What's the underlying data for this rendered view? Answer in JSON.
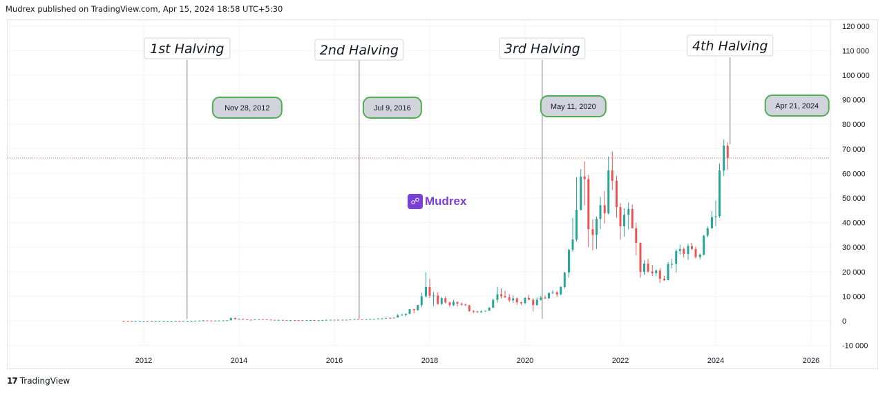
{
  "header": {
    "publisher_text": "Mudrex published on TradingView.com, Apr 15, 2024 18:58 UTC+5:30"
  },
  "watermark": {
    "text": "Mudrex",
    "icon": "mudrex-logo-icon",
    "color": "#7b3fd6"
  },
  "footer": {
    "brand": "TradingView",
    "logo_text": "17"
  },
  "colors": {
    "up": "#26a69a",
    "down": "#ef5350",
    "grid": "#f0f3fa",
    "price_line": "#ef5350",
    "halving_line": "#787b86",
    "date_label_bg": "#d1d4dc",
    "date_label_border": "#4caf50"
  },
  "chart_data": {
    "type": "candlestick",
    "interval": "monthly",
    "title": "",
    "xlabel": "",
    "ylabel": "",
    "x_ticks": [
      "2012",
      "2014",
      "2016",
      "2018",
      "2020",
      "2022",
      "2024",
      "2026"
    ],
    "y_ticks": [
      "120 000",
      "110 000",
      "100 000",
      "90 000",
      "80 000",
      "70 000",
      "60 000",
      "50 000",
      "40 000",
      "30 000",
      "20 000",
      "10 000",
      "0",
      "-10 000"
    ],
    "ylim": [
      -10000,
      120000
    ],
    "xlim": [
      2011.0,
      2027.0
    ],
    "grid": true,
    "current_price": 66300,
    "halvings": [
      {
        "label": "1st Halving",
        "date_label": "Nov 28, 2012",
        "x": 2012.91
      },
      {
        "label": "2nd Halving",
        "date_label": "Jul 9, 2016",
        "x": 2016.52
      },
      {
        "label": "3rd Halving",
        "date_label": "May 11, 2020",
        "x": 2020.36
      },
      {
        "label": "4th Halving",
        "date_label": "Apr 21, 2024",
        "x": 2024.3
      }
    ],
    "candles": [
      {
        "t": 2011.58,
        "o": 10,
        "h": 15,
        "l": 5,
        "c": 8
      },
      {
        "t": 2011.67,
        "o": 8,
        "h": 9,
        "l": 4,
        "c": 5
      },
      {
        "t": 2011.75,
        "o": 5,
        "h": 6,
        "l": 2,
        "c": 3
      },
      {
        "t": 2011.83,
        "o": 3,
        "h": 4,
        "l": 2,
        "c": 3
      },
      {
        "t": 2011.92,
        "o": 3,
        "h": 5,
        "l": 3,
        "c": 5
      },
      {
        "t": 2012.0,
        "o": 5,
        "h": 7,
        "l": 5,
        "c": 6
      },
      {
        "t": 2012.08,
        "o": 6,
        "h": 6,
        "l": 4,
        "c": 5
      },
      {
        "t": 2012.17,
        "o": 5,
        "h": 5,
        "l": 4,
        "c": 5
      },
      {
        "t": 2012.25,
        "o": 5,
        "h": 5,
        "l": 4,
        "c": 5
      },
      {
        "t": 2012.33,
        "o": 5,
        "h": 5,
        "l": 5,
        "c": 5
      },
      {
        "t": 2012.42,
        "o": 5,
        "h": 7,
        "l": 5,
        "c": 7
      },
      {
        "t": 2012.5,
        "o": 7,
        "h": 9,
        "l": 7,
        "c": 9
      },
      {
        "t": 2012.58,
        "o": 9,
        "h": 16,
        "l": 8,
        "c": 10
      },
      {
        "t": 2012.67,
        "o": 10,
        "h": 12,
        "l": 10,
        "c": 12
      },
      {
        "t": 2012.75,
        "o": 12,
        "h": 12,
        "l": 10,
        "c": 11
      },
      {
        "t": 2012.83,
        "o": 11,
        "h": 13,
        "l": 10,
        "c": 12
      },
      {
        "t": 2012.92,
        "o": 12,
        "h": 14,
        "l": 12,
        "c": 13
      },
      {
        "t": 2013.0,
        "o": 13,
        "h": 20,
        "l": 13,
        "c": 20
      },
      {
        "t": 2013.08,
        "o": 20,
        "h": 34,
        "l": 20,
        "c": 33
      },
      {
        "t": 2013.17,
        "o": 33,
        "h": 95,
        "l": 33,
        "c": 93
      },
      {
        "t": 2013.25,
        "o": 93,
        "h": 260,
        "l": 60,
        "c": 140
      },
      {
        "t": 2013.33,
        "o": 140,
        "h": 140,
        "l": 100,
        "c": 128
      },
      {
        "t": 2013.42,
        "o": 128,
        "h": 130,
        "l": 90,
        "c": 97
      },
      {
        "t": 2013.5,
        "o": 97,
        "h": 112,
        "l": 65,
        "c": 106
      },
      {
        "t": 2013.58,
        "o": 106,
        "h": 135,
        "l": 104,
        "c": 135
      },
      {
        "t": 2013.67,
        "o": 135,
        "h": 140,
        "l": 120,
        "c": 139
      },
      {
        "t": 2013.75,
        "o": 139,
        "h": 215,
        "l": 103,
        "c": 210
      },
      {
        "t": 2013.83,
        "o": 210,
        "h": 1240,
        "l": 200,
        "c": 1200
      },
      {
        "t": 2013.92,
        "o": 1200,
        "h": 1150,
        "l": 500,
        "c": 750
      },
      {
        "t": 2014.0,
        "o": 750,
        "h": 1000,
        "l": 750,
        "c": 800
      },
      {
        "t": 2014.08,
        "o": 800,
        "h": 860,
        "l": 420,
        "c": 560
      },
      {
        "t": 2014.17,
        "o": 560,
        "h": 700,
        "l": 440,
        "c": 450
      },
      {
        "t": 2014.25,
        "o": 450,
        "h": 520,
        "l": 340,
        "c": 445
      },
      {
        "t": 2014.33,
        "o": 445,
        "h": 630,
        "l": 430,
        "c": 630
      },
      {
        "t": 2014.42,
        "o": 630,
        "h": 680,
        "l": 560,
        "c": 640
      },
      {
        "t": 2014.5,
        "o": 640,
        "h": 630,
        "l": 570,
        "c": 590
      },
      {
        "t": 2014.58,
        "o": 590,
        "h": 600,
        "l": 450,
        "c": 480
      },
      {
        "t": 2014.67,
        "o": 480,
        "h": 490,
        "l": 370,
        "c": 390
      },
      {
        "t": 2014.75,
        "o": 390,
        "h": 420,
        "l": 280,
        "c": 340
      },
      {
        "t": 2014.83,
        "o": 340,
        "h": 460,
        "l": 330,
        "c": 370
      },
      {
        "t": 2014.92,
        "o": 370,
        "h": 380,
        "l": 300,
        "c": 320
      },
      {
        "t": 2015.0,
        "o": 320,
        "h": 320,
        "l": 170,
        "c": 220
      },
      {
        "t": 2015.08,
        "o": 220,
        "h": 260,
        "l": 220,
        "c": 255
      },
      {
        "t": 2015.17,
        "o": 255,
        "h": 300,
        "l": 240,
        "c": 245
      },
      {
        "t": 2015.25,
        "o": 245,
        "h": 250,
        "l": 215,
        "c": 235
      },
      {
        "t": 2015.33,
        "o": 235,
        "h": 245,
        "l": 225,
        "c": 230
      },
      {
        "t": 2015.42,
        "o": 230,
        "h": 265,
        "l": 220,
        "c": 263
      },
      {
        "t": 2015.5,
        "o": 263,
        "h": 300,
        "l": 255,
        "c": 285
      },
      {
        "t": 2015.58,
        "o": 285,
        "h": 285,
        "l": 200,
        "c": 230
      },
      {
        "t": 2015.67,
        "o": 230,
        "h": 245,
        "l": 225,
        "c": 237
      },
      {
        "t": 2015.75,
        "o": 237,
        "h": 330,
        "l": 235,
        "c": 315
      },
      {
        "t": 2015.83,
        "o": 315,
        "h": 500,
        "l": 310,
        "c": 378
      },
      {
        "t": 2015.92,
        "o": 378,
        "h": 470,
        "l": 350,
        "c": 430
      },
      {
        "t": 2016.0,
        "o": 430,
        "h": 460,
        "l": 350,
        "c": 370
      },
      {
        "t": 2016.08,
        "o": 370,
        "h": 440,
        "l": 365,
        "c": 437
      },
      {
        "t": 2016.17,
        "o": 437,
        "h": 440,
        "l": 400,
        "c": 416
      },
      {
        "t": 2016.25,
        "o": 416,
        "h": 465,
        "l": 410,
        "c": 448
      },
      {
        "t": 2016.33,
        "o": 448,
        "h": 540,
        "l": 440,
        "c": 530
      },
      {
        "t": 2016.42,
        "o": 530,
        "h": 780,
        "l": 530,
        "c": 673
      },
      {
        "t": 2016.5,
        "o": 673,
        "h": 700,
        "l": 630,
        "c": 624
      },
      {
        "t": 2016.58,
        "o": 624,
        "h": 630,
        "l": 550,
        "c": 575
      },
      {
        "t": 2016.67,
        "o": 575,
        "h": 610,
        "l": 600,
        "c": 609
      },
      {
        "t": 2016.75,
        "o": 609,
        "h": 740,
        "l": 605,
        "c": 700
      },
      {
        "t": 2016.83,
        "o": 700,
        "h": 750,
        "l": 690,
        "c": 745
      },
      {
        "t": 2016.92,
        "o": 745,
        "h": 975,
        "l": 740,
        "c": 963
      },
      {
        "t": 2017.0,
        "o": 963,
        "h": 1150,
        "l": 750,
        "c": 970
      },
      {
        "t": 2017.08,
        "o": 970,
        "h": 1200,
        "l": 920,
        "c": 1190
      },
      {
        "t": 2017.17,
        "o": 1190,
        "h": 1350,
        "l": 890,
        "c": 1080
      },
      {
        "t": 2017.25,
        "o": 1080,
        "h": 1350,
        "l": 1060,
        "c": 1350
      },
      {
        "t": 2017.33,
        "o": 1350,
        "h": 2760,
        "l": 1340,
        "c": 2300
      },
      {
        "t": 2017.42,
        "o": 2300,
        "h": 2980,
        "l": 2080,
        "c": 2480
      },
      {
        "t": 2017.5,
        "o": 2480,
        "h": 2900,
        "l": 1840,
        "c": 2870
      },
      {
        "t": 2017.58,
        "o": 2870,
        "h": 4750,
        "l": 2700,
        "c": 4740
      },
      {
        "t": 2017.67,
        "o": 4740,
        "h": 4980,
        "l": 3000,
        "c": 4340
      },
      {
        "t": 2017.75,
        "o": 4340,
        "h": 6470,
        "l": 4160,
        "c": 6450
      },
      {
        "t": 2017.83,
        "o": 6450,
        "h": 11500,
        "l": 5500,
        "c": 10000
      },
      {
        "t": 2017.92,
        "o": 10000,
        "h": 19800,
        "l": 9500,
        "c": 13800
      },
      {
        "t": 2018.0,
        "o": 13800,
        "h": 17200,
        "l": 9200,
        "c": 10200
      },
      {
        "t": 2018.08,
        "o": 10200,
        "h": 11800,
        "l": 6000,
        "c": 10300
      },
      {
        "t": 2018.17,
        "o": 10300,
        "h": 11700,
        "l": 6600,
        "c": 6900
      },
      {
        "t": 2018.25,
        "o": 6900,
        "h": 9800,
        "l": 6500,
        "c": 9200
      },
      {
        "t": 2018.33,
        "o": 9200,
        "h": 9990,
        "l": 7050,
        "c": 7500
      },
      {
        "t": 2018.42,
        "o": 7500,
        "h": 7800,
        "l": 5750,
        "c": 6400
      },
      {
        "t": 2018.5,
        "o": 6400,
        "h": 8500,
        "l": 6000,
        "c": 7730
      },
      {
        "t": 2018.58,
        "o": 7730,
        "h": 7800,
        "l": 5900,
        "c": 7040
      },
      {
        "t": 2018.67,
        "o": 7040,
        "h": 7400,
        "l": 6100,
        "c": 6620
      },
      {
        "t": 2018.75,
        "o": 6620,
        "h": 7000,
        "l": 6200,
        "c": 6320
      },
      {
        "t": 2018.83,
        "o": 6320,
        "h": 6500,
        "l": 3700,
        "c": 4020
      },
      {
        "t": 2018.92,
        "o": 4020,
        "h": 4300,
        "l": 3150,
        "c": 3740
      },
      {
        "t": 2019.0,
        "o": 3740,
        "h": 4100,
        "l": 3400,
        "c": 3460
      },
      {
        "t": 2019.08,
        "o": 3460,
        "h": 4200,
        "l": 3400,
        "c": 3830
      },
      {
        "t": 2019.17,
        "o": 3830,
        "h": 4100,
        "l": 3700,
        "c": 4100
      },
      {
        "t": 2019.25,
        "o": 4100,
        "h": 5600,
        "l": 4050,
        "c": 5350
      },
      {
        "t": 2019.33,
        "o": 5350,
        "h": 9000,
        "l": 5300,
        "c": 8570
      },
      {
        "t": 2019.42,
        "o": 8570,
        "h": 13900,
        "l": 7450,
        "c": 10820
      },
      {
        "t": 2019.5,
        "o": 10820,
        "h": 13200,
        "l": 9100,
        "c": 10090
      },
      {
        "t": 2019.58,
        "o": 10090,
        "h": 12300,
        "l": 9300,
        "c": 9620
      },
      {
        "t": 2019.67,
        "o": 9620,
        "h": 10900,
        "l": 7800,
        "c": 8300
      },
      {
        "t": 2019.75,
        "o": 8300,
        "h": 10400,
        "l": 7300,
        "c": 9150
      },
      {
        "t": 2019.83,
        "o": 9150,
        "h": 9500,
        "l": 6500,
        "c": 7570
      },
      {
        "t": 2019.92,
        "o": 7570,
        "h": 7750,
        "l": 6430,
        "c": 7190
      },
      {
        "t": 2020.0,
        "o": 7190,
        "h": 9600,
        "l": 6850,
        "c": 9350
      },
      {
        "t": 2020.08,
        "o": 9350,
        "h": 10500,
        "l": 8450,
        "c": 8600
      },
      {
        "t": 2020.17,
        "o": 8600,
        "h": 9200,
        "l": 3800,
        "c": 6440
      },
      {
        "t": 2020.25,
        "o": 6440,
        "h": 9500,
        "l": 6200,
        "c": 8630
      },
      {
        "t": 2020.33,
        "o": 8630,
        "h": 10100,
        "l": 8150,
        "c": 9450
      },
      {
        "t": 2020.42,
        "o": 9450,
        "h": 10400,
        "l": 8900,
        "c": 9140
      },
      {
        "t": 2020.5,
        "o": 9140,
        "h": 11450,
        "l": 8980,
        "c": 11350
      },
      {
        "t": 2020.58,
        "o": 11350,
        "h": 12480,
        "l": 10900,
        "c": 11650
      },
      {
        "t": 2020.67,
        "o": 11650,
        "h": 12050,
        "l": 9850,
        "c": 10780
      },
      {
        "t": 2020.75,
        "o": 10780,
        "h": 14100,
        "l": 10400,
        "c": 13800
      },
      {
        "t": 2020.83,
        "o": 13800,
        "h": 19900,
        "l": 13200,
        "c": 19700
      },
      {
        "t": 2020.92,
        "o": 19700,
        "h": 29300,
        "l": 17600,
        "c": 28950
      },
      {
        "t": 2021.0,
        "o": 28950,
        "h": 41900,
        "l": 28100,
        "c": 33100
      },
      {
        "t": 2021.08,
        "o": 33100,
        "h": 58400,
        "l": 32300,
        "c": 45200
      },
      {
        "t": 2021.17,
        "o": 45200,
        "h": 61800,
        "l": 44900,
        "c": 58800
      },
      {
        "t": 2021.25,
        "o": 58800,
        "h": 64900,
        "l": 47000,
        "c": 57700
      },
      {
        "t": 2021.33,
        "o": 57700,
        "h": 59500,
        "l": 30000,
        "c": 37300
      },
      {
        "t": 2021.42,
        "o": 37300,
        "h": 41300,
        "l": 28800,
        "c": 35000
      },
      {
        "t": 2021.5,
        "o": 35000,
        "h": 42400,
        "l": 29300,
        "c": 41500
      },
      {
        "t": 2021.58,
        "o": 41500,
        "h": 50500,
        "l": 37300,
        "c": 47100
      },
      {
        "t": 2021.67,
        "o": 47100,
        "h": 52900,
        "l": 39600,
        "c": 43800
      },
      {
        "t": 2021.75,
        "o": 43800,
        "h": 66900,
        "l": 43300,
        "c": 61300
      },
      {
        "t": 2021.83,
        "o": 61300,
        "h": 69000,
        "l": 53300,
        "c": 57000
      },
      {
        "t": 2021.92,
        "o": 57000,
        "h": 59100,
        "l": 42000,
        "c": 46300
      },
      {
        "t": 2022.0,
        "o": 46300,
        "h": 47900,
        "l": 33000,
        "c": 38500
      },
      {
        "t": 2022.08,
        "o": 38500,
        "h": 45800,
        "l": 34300,
        "c": 43200
      },
      {
        "t": 2022.17,
        "o": 43200,
        "h": 48200,
        "l": 37200,
        "c": 45500
      },
      {
        "t": 2022.25,
        "o": 45500,
        "h": 47400,
        "l": 37700,
        "c": 37700
      },
      {
        "t": 2022.33,
        "o": 37700,
        "h": 39900,
        "l": 26700,
        "c": 31800
      },
      {
        "t": 2022.42,
        "o": 31800,
        "h": 31900,
        "l": 17600,
        "c": 19900
      },
      {
        "t": 2022.5,
        "o": 19900,
        "h": 24700,
        "l": 18800,
        "c": 23300
      },
      {
        "t": 2022.58,
        "o": 23300,
        "h": 25200,
        "l": 19600,
        "c": 20050
      },
      {
        "t": 2022.67,
        "o": 20050,
        "h": 22800,
        "l": 18200,
        "c": 19400
      },
      {
        "t": 2022.75,
        "o": 19400,
        "h": 20900,
        "l": 18200,
        "c": 20500
      },
      {
        "t": 2022.83,
        "o": 20500,
        "h": 21450,
        "l": 15500,
        "c": 17150
      },
      {
        "t": 2022.92,
        "o": 17150,
        "h": 18400,
        "l": 16300,
        "c": 16550
      },
      {
        "t": 2023.0,
        "o": 16550,
        "h": 23950,
        "l": 16500,
        "c": 23100
      },
      {
        "t": 2023.08,
        "o": 23100,
        "h": 25250,
        "l": 21400,
        "c": 23150
      },
      {
        "t": 2023.17,
        "o": 23150,
        "h": 29200,
        "l": 19550,
        "c": 28450
      },
      {
        "t": 2023.25,
        "o": 28450,
        "h": 31050,
        "l": 26950,
        "c": 29250
      },
      {
        "t": 2023.33,
        "o": 29250,
        "h": 29850,
        "l": 25800,
        "c": 27200
      },
      {
        "t": 2023.42,
        "o": 27200,
        "h": 31400,
        "l": 24800,
        "c": 30450
      },
      {
        "t": 2023.5,
        "o": 30450,
        "h": 31800,
        "l": 28850,
        "c": 29250
      },
      {
        "t": 2023.58,
        "o": 29250,
        "h": 30200,
        "l": 25350,
        "c": 25950
      },
      {
        "t": 2023.67,
        "o": 25950,
        "h": 27450,
        "l": 24900,
        "c": 26950
      },
      {
        "t": 2023.75,
        "o": 26950,
        "h": 35000,
        "l": 26550,
        "c": 34650
      },
      {
        "t": 2023.83,
        "o": 34650,
        "h": 38400,
        "l": 34100,
        "c": 37700
      },
      {
        "t": 2023.92,
        "o": 37700,
        "h": 44700,
        "l": 37600,
        "c": 42250
      },
      {
        "t": 2024.0,
        "o": 42250,
        "h": 48950,
        "l": 38550,
        "c": 42600
      },
      {
        "t": 2024.08,
        "o": 42600,
        "h": 64000,
        "l": 41900,
        "c": 61200
      },
      {
        "t": 2024.17,
        "o": 61200,
        "h": 73800,
        "l": 59000,
        "c": 71300
      },
      {
        "t": 2024.25,
        "o": 71300,
        "h": 72700,
        "l": 61600,
        "c": 66300
      }
    ]
  }
}
